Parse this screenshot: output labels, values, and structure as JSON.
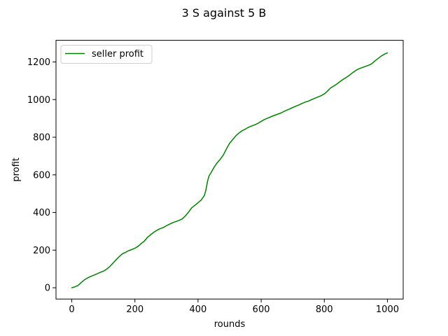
{
  "chart_data": {
    "type": "line",
    "title": "3 S against 5 B",
    "xlabel": "rounds",
    "ylabel": "profit",
    "xlim": [
      -50,
      1050
    ],
    "ylim": [
      -60,
      1315
    ],
    "xticks": [
      0,
      200,
      400,
      600,
      800,
      1000
    ],
    "yticks": [
      0,
      200,
      400,
      600,
      800,
      1000,
      1200
    ],
    "grid": false,
    "legend_position": "upper left",
    "series": [
      {
        "name": "seller profit",
        "color": "#008000",
        "x": [
          0,
          10,
          20,
          30,
          40,
          50,
          60,
          70,
          80,
          90,
          100,
          110,
          120,
          130,
          140,
          150,
          160,
          170,
          180,
          190,
          200,
          210,
          220,
          230,
          240,
          250,
          260,
          270,
          280,
          290,
          300,
          310,
          320,
          330,
          340,
          350,
          360,
          370,
          380,
          390,
          400,
          410,
          420,
          425,
          430,
          435,
          440,
          450,
          460,
          470,
          480,
          490,
          500,
          510,
          520,
          530,
          540,
          550,
          560,
          570,
          580,
          590,
          600,
          610,
          620,
          630,
          640,
          650,
          660,
          670,
          680,
          690,
          700,
          710,
          720,
          730,
          740,
          750,
          760,
          770,
          780,
          790,
          800,
          810,
          820,
          830,
          840,
          850,
          860,
          870,
          880,
          890,
          900,
          910,
          920,
          930,
          940,
          950,
          960,
          970,
          980,
          990,
          1000
        ],
        "y": [
          0,
          5,
          12,
          28,
          42,
          52,
          60,
          67,
          74,
          82,
          88,
          98,
          112,
          130,
          148,
          165,
          180,
          188,
          197,
          203,
          210,
          220,
          235,
          248,
          268,
          282,
          295,
          306,
          314,
          320,
          330,
          338,
          346,
          352,
          358,
          366,
          382,
          402,
          425,
          438,
          452,
          466,
          490,
          520,
          565,
          595,
          608,
          638,
          663,
          682,
          705,
          738,
          768,
          788,
          808,
          823,
          835,
          843,
          853,
          860,
          866,
          874,
          884,
          894,
          901,
          908,
          915,
          921,
          927,
          935,
          943,
          950,
          958,
          965,
          972,
          980,
          987,
          992,
          1000,
          1007,
          1014,
          1021,
          1030,
          1045,
          1062,
          1072,
          1083,
          1096,
          1108,
          1118,
          1130,
          1143,
          1155,
          1164,
          1170,
          1176,
          1182,
          1190,
          1205,
          1218,
          1231,
          1241,
          1248
        ]
      }
    ]
  }
}
